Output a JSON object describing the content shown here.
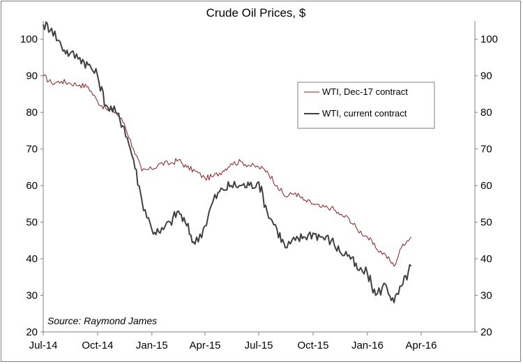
{
  "chart_data": {
    "type": "line",
    "title": "Crude Oil Prices, $",
    "source": "Source: Raymond James",
    "xlabel": "",
    "ylabel": "",
    "x_ticks": [
      "Jul-14",
      "Oct-14",
      "Jan-15",
      "Apr-15",
      "Jul-15",
      "Oct-15",
      "Jan-16",
      "Apr-16"
    ],
    "ylim": [
      20,
      105
    ],
    "y_ticks": [
      20,
      30,
      40,
      50,
      60,
      70,
      80,
      90,
      100
    ],
    "y_axis_both_sides": true,
    "grid": false,
    "legend_position": "right",
    "series": [
      {
        "name": "WTI, Dec-17 contract",
        "color": "#8b1a1a",
        "width": 1,
        "x": [
          "2014-07-01",
          "2014-07-15",
          "2014-08-01",
          "2014-08-15",
          "2014-09-01",
          "2014-09-15",
          "2014-10-01",
          "2014-10-15",
          "2014-11-01",
          "2014-11-15",
          "2014-12-01",
          "2014-12-15",
          "2015-01-01",
          "2015-01-15",
          "2015-02-01",
          "2015-02-15",
          "2015-03-01",
          "2015-03-15",
          "2015-04-01",
          "2015-04-15",
          "2015-05-01",
          "2015-05-15",
          "2015-06-01",
          "2015-06-15",
          "2015-07-01",
          "2015-07-15",
          "2015-08-01",
          "2015-08-15",
          "2015-09-01",
          "2015-09-15",
          "2015-10-01",
          "2015-10-15",
          "2015-11-01",
          "2015-11-15",
          "2015-12-01",
          "2015-12-15",
          "2016-01-01",
          "2016-01-15",
          "2016-02-01",
          "2016-02-15",
          "2016-03-01",
          "2016-03-15"
        ],
        "y": [
          90,
          88,
          88.5,
          88,
          87.5,
          87,
          83,
          81,
          80,
          77,
          70,
          64,
          64.5,
          66,
          66,
          67,
          65,
          64,
          62,
          62.5,
          64,
          66,
          66.5,
          65.5,
          65,
          64,
          60,
          57,
          58,
          56,
          55,
          54,
          54,
          52,
          51,
          48,
          46,
          43,
          41,
          38,
          44,
          46
        ]
      },
      {
        "name": "WTI, current contract",
        "color": "#404040",
        "width": 2,
        "x": [
          "2014-07-01",
          "2014-07-15",
          "2014-08-01",
          "2014-08-15",
          "2014-09-01",
          "2014-09-15",
          "2014-10-01",
          "2014-10-15",
          "2014-11-01",
          "2014-11-15",
          "2014-12-01",
          "2014-12-15",
          "2015-01-01",
          "2015-01-15",
          "2015-02-01",
          "2015-02-15",
          "2015-03-01",
          "2015-03-15",
          "2015-04-01",
          "2015-04-15",
          "2015-05-01",
          "2015-05-15",
          "2015-06-01",
          "2015-06-15",
          "2015-07-01",
          "2015-07-15",
          "2015-08-01",
          "2015-08-15",
          "2015-09-01",
          "2015-09-15",
          "2015-10-01",
          "2015-10-15",
          "2015-11-01",
          "2015-11-15",
          "2015-12-01",
          "2015-12-15",
          "2016-01-01",
          "2016-01-15",
          "2016-02-01",
          "2016-02-15",
          "2016-03-01",
          "2016-03-15"
        ],
        "y": [
          104,
          103,
          98,
          96,
          95,
          93,
          90,
          82,
          80,
          76,
          67,
          56,
          48,
          47,
          50,
          53,
          49,
          44,
          49,
          56,
          59,
          60,
          60,
          60,
          61,
          53,
          48,
          43,
          45,
          46,
          47,
          46,
          45,
          42,
          41,
          37,
          36,
          30,
          33,
          28,
          33,
          38
        ]
      }
    ]
  }
}
